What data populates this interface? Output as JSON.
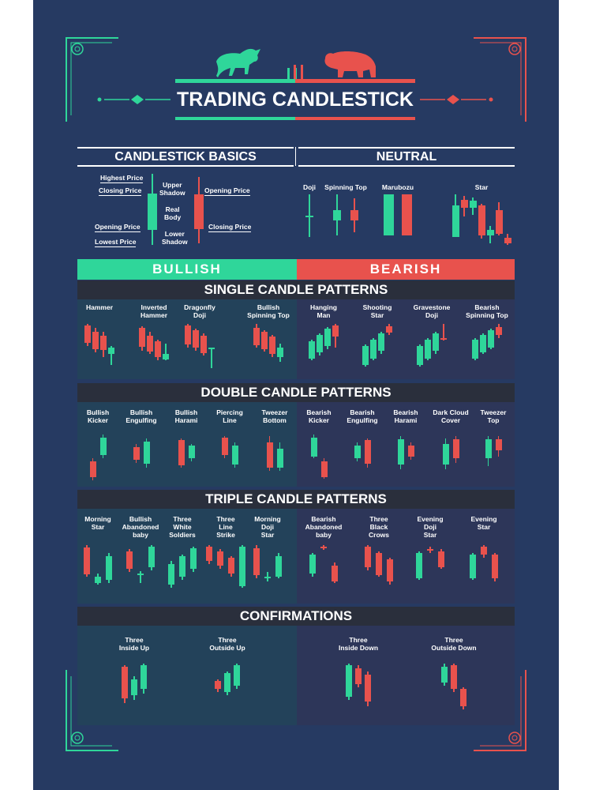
{
  "title": "TRADING CANDLESTICK",
  "colors": {
    "background": "#263a62",
    "bullish": "#2fd69a",
    "bearish": "#e8524d",
    "section_bar": "#2a2f3c",
    "panel_bull": "#23425a",
    "panel_bear": "#2d3659"
  },
  "basics": {
    "title": "CANDLESTICK BASICS",
    "labels": {
      "highest_price": "Highest Price",
      "closing_price_left": "Closing Price",
      "opening_price_left": "Opening Price",
      "lowest_price": "Lowest Price",
      "upper_shadow": "Upper\nShadow",
      "real_body": "Real\nBody",
      "lower_shadow": "Lower\nShadow",
      "opening_price_right": "Opening Price",
      "closing_price_right": "Closing Price"
    }
  },
  "neutral": {
    "title": "NEUTRAL",
    "patterns": [
      {
        "name": "Doji",
        "candles": [
          {
            "c": "bull",
            "wt": 0,
            "bt": 27,
            "bh": 2,
            "wb": 54
          }
        ]
      },
      {
        "name": "Spinning Top",
        "candles": [
          {
            "c": "bull",
            "wt": 0,
            "bt": 20,
            "bh": 13,
            "wb": 52
          },
          {
            "c": "bear",
            "wt": 5,
            "bt": 20,
            "bh": 13,
            "wb": 48
          }
        ]
      },
      {
        "name": "Marubozu",
        "candles": [
          {
            "c": "bull",
            "wt": 0,
            "bt": 0,
            "bh": 52,
            "wb": 52
          },
          {
            "c": "bear",
            "wt": 0,
            "bt": 0,
            "bh": 52,
            "wb": 52
          }
        ]
      },
      {
        "name": "Star",
        "candles": [
          {
            "c": "bull",
            "wt": 0,
            "bt": 14,
            "bh": 40,
            "wb": 54
          },
          {
            "c": "bear",
            "wt": 2,
            "bt": 7,
            "bh": 10,
            "wb": 28
          },
          {
            "c": "bull",
            "wt": 4,
            "bt": 8,
            "bh": 9,
            "wb": 26
          },
          {
            "c": "bear",
            "wt": 12,
            "bt": 14,
            "bh": 38,
            "wb": 56
          },
          {
            "c": "bull",
            "wt": 40,
            "bt": 45,
            "bh": 7,
            "wb": 62
          },
          {
            "c": "bear",
            "wt": 10,
            "bt": 20,
            "bh": 30,
            "wb": 52
          },
          {
            "c": "bear",
            "wt": 50,
            "bt": 55,
            "bh": 7,
            "wb": 64
          }
        ]
      }
    ]
  },
  "bullish_label": "BULLISH",
  "bearish_label": "BEARISH",
  "single": {
    "title": "SINGLE CANDLE PATTERNS",
    "bullish": [
      {
        "name": "Hammer",
        "candles": [
          {
            "c": "bear",
            "wt": 0,
            "bt": 2,
            "bh": 22,
            "wb": 28
          },
          {
            "c": "bear",
            "wt": 5,
            "bt": 10,
            "bh": 22,
            "wb": 36
          },
          {
            "c": "bear",
            "wt": 10,
            "bt": 15,
            "bh": 18,
            "wb": 42
          },
          {
            "c": "bull",
            "wt": 28,
            "bt": 30,
            "bh": 8,
            "wb": 52
          }
        ]
      },
      {
        "name": "Inverted\nHammer",
        "candles": [
          {
            "c": "bear",
            "wt": 3,
            "bt": 5,
            "bh": 24,
            "wb": 34
          },
          {
            "c": "bear",
            "wt": 10,
            "bt": 15,
            "bh": 20,
            "wb": 38
          },
          {
            "c": "bear",
            "wt": 20,
            "bt": 22,
            "bh": 20,
            "wb": 46
          },
          {
            "c": "bull",
            "wt": 25,
            "bt": 38,
            "bh": 7,
            "wb": 46
          }
        ]
      },
      {
        "name": "Dragonfly\nDoji",
        "candles": [
          {
            "c": "bear",
            "wt": 0,
            "bt": 2,
            "bh": 24,
            "wb": 30
          },
          {
            "c": "bear",
            "wt": 6,
            "bt": 8,
            "bh": 22,
            "wb": 34
          },
          {
            "c": "bear",
            "wt": 12,
            "bt": 15,
            "bh": 22,
            "wb": 40
          },
          {
            "c": "bull",
            "wt": 30,
            "bt": 30,
            "bh": 2,
            "wb": 56
          }
        ]
      },
      {
        "name": "Bullish\nSpinning Top",
        "candles": [
          {
            "c": "bear",
            "wt": 0,
            "bt": 5,
            "bh": 22,
            "wb": 30
          },
          {
            "c": "bear",
            "wt": 8,
            "bt": 10,
            "bh": 22,
            "wb": 35
          },
          {
            "c": "bear",
            "wt": 14,
            "bt": 16,
            "bh": 22,
            "wb": 42
          },
          {
            "c": "bull",
            "wt": 25,
            "bt": 30,
            "bh": 12,
            "wb": 48
          }
        ]
      }
    ],
    "bearish": [
      {
        "name": "Hanging\nMan",
        "candles": [
          {
            "c": "bull",
            "wt": 20,
            "bt": 22,
            "bh": 22,
            "wb": 46
          },
          {
            "c": "bull",
            "wt": 12,
            "bt": 14,
            "bh": 22,
            "wb": 40
          },
          {
            "c": "bull",
            "wt": 4,
            "bt": 6,
            "bh": 22,
            "wb": 32
          },
          {
            "c": "bear",
            "wt": 0,
            "bt": 2,
            "bh": 14,
            "wb": 30
          }
        ]
      },
      {
        "name": "Shooting\nStar",
        "candles": [
          {
            "c": "bull",
            "wt": 26,
            "bt": 28,
            "bh": 24,
            "wb": 54
          },
          {
            "c": "bull",
            "wt": 18,
            "bt": 20,
            "bh": 24,
            "wb": 46
          },
          {
            "c": "bull",
            "wt": 10,
            "bt": 12,
            "bh": 22,
            "wb": 38
          },
          {
            "c": "bear",
            "wt": 0,
            "bt": 3,
            "bh": 8,
            "wb": 14
          }
        ]
      },
      {
        "name": "Gravestone\nDoji",
        "candles": [
          {
            "c": "bull",
            "wt": 26,
            "bt": 28,
            "bh": 24,
            "wb": 54
          },
          {
            "c": "bull",
            "wt": 18,
            "bt": 20,
            "bh": 24,
            "wb": 46
          },
          {
            "c": "bull",
            "wt": 10,
            "bt": 12,
            "bh": 22,
            "wb": 38
          },
          {
            "c": "bear",
            "wt": 0,
            "bt": 18,
            "bh": 2,
            "wb": 21
          }
        ]
      },
      {
        "name": "Bearish\nSpinning Top",
        "candles": [
          {
            "c": "bull",
            "wt": 18,
            "bt": 20,
            "bh": 24,
            "wb": 46
          },
          {
            "c": "bull",
            "wt": 12,
            "bt": 14,
            "bh": 22,
            "wb": 38
          },
          {
            "c": "bull",
            "wt": 6,
            "bt": 8,
            "bh": 22,
            "wb": 32
          },
          {
            "c": "bear",
            "wt": 0,
            "bt": 4,
            "bh": 10,
            "wb": 18
          }
        ]
      }
    ]
  },
  "double": {
    "title": "DOUBLE CANDLE PATTERNS",
    "bullish": [
      {
        "name": "Bullish\nKicker",
        "candles": [
          {
            "c": "bear",
            "wt": 30,
            "bt": 34,
            "bh": 20,
            "wb": 58
          },
          {
            "c": "bull",
            "wt": 0,
            "bt": 4,
            "bh": 22,
            "wb": 30
          }
        ]
      },
      {
        "name": "Bullish\nEngulfing",
        "candles": [
          {
            "c": "bear",
            "wt": 12,
            "bt": 16,
            "bh": 16,
            "wb": 36
          },
          {
            "c": "bull",
            "wt": 5,
            "bt": 9,
            "bh": 28,
            "wb": 42
          }
        ]
      },
      {
        "name": "Bullish\nHarami",
        "candles": [
          {
            "c": "bear",
            "wt": 5,
            "bt": 7,
            "bh": 32,
            "wb": 42
          },
          {
            "c": "bull",
            "wt": 12,
            "bt": 14,
            "bh": 16,
            "wb": 34
          }
        ]
      },
      {
        "name": "Piercing\nLine",
        "candles": [
          {
            "c": "bear",
            "wt": 2,
            "bt": 4,
            "bh": 22,
            "wb": 30
          },
          {
            "c": "bull",
            "wt": 10,
            "bt": 14,
            "bh": 24,
            "wb": 42
          }
        ]
      },
      {
        "name": "Tweezer\nBottom",
        "candles": [
          {
            "c": "bear",
            "wt": 2,
            "bt": 10,
            "bh": 32,
            "wb": 46
          },
          {
            "c": "bull",
            "wt": 10,
            "bt": 18,
            "bh": 24,
            "wb": 46
          }
        ]
      }
    ],
    "bearish": [
      {
        "name": "Bearish\nKicker",
        "candles": [
          {
            "c": "bull",
            "wt": 0,
            "bt": 4,
            "bh": 24,
            "wb": 30
          },
          {
            "c": "bear",
            "wt": 30,
            "bt": 34,
            "bh": 20,
            "wb": 56
          }
        ]
      },
      {
        "name": "Bearish\nEngulfing",
        "candles": [
          {
            "c": "bull",
            "wt": 10,
            "bt": 14,
            "bh": 16,
            "wb": 34
          },
          {
            "c": "bear",
            "wt": 5,
            "bt": 7,
            "bh": 30,
            "wb": 42
          }
        ]
      },
      {
        "name": "Bearish\nHarami",
        "candles": [
          {
            "c": "bull",
            "wt": 2,
            "bt": 6,
            "bh": 32,
            "wb": 44
          },
          {
            "c": "bear",
            "wt": 10,
            "bt": 14,
            "bh": 14,
            "wb": 32
          }
        ]
      },
      {
        "name": "Dark Cloud\nCover",
        "candles": [
          {
            "c": "bull",
            "wt": 5,
            "bt": 12,
            "bh": 26,
            "wb": 44
          },
          {
            "c": "bear",
            "wt": 2,
            "bt": 6,
            "bh": 24,
            "wb": 36
          }
        ]
      },
      {
        "name": "Tweezer\nTop",
        "candles": [
          {
            "c": "bull",
            "wt": 2,
            "bt": 6,
            "bh": 24,
            "wb": 40
          },
          {
            "c": "bear",
            "wt": 2,
            "bt": 6,
            "bh": 14,
            "wb": 28
          }
        ]
      }
    ]
  },
  "triple": {
    "title": "TRIPLE CANDLE PATTERNS",
    "bullish": [
      {
        "name": "Morning\nStar",
        "candles": [
          {
            "c": "bear",
            "wt": 0,
            "bt": 3,
            "bh": 34,
            "wb": 40
          },
          {
            "c": "bull",
            "wt": 36,
            "bt": 40,
            "bh": 8,
            "wb": 50
          },
          {
            "c": "bull",
            "wt": 10,
            "bt": 14,
            "bh": 30,
            "wb": 48
          }
        ]
      },
      {
        "name": "Bullish\nAbandoned\nbaby",
        "candles": [
          {
            "c": "bear",
            "wt": 5,
            "bt": 8,
            "bh": 22,
            "wb": 34
          },
          {
            "c": "bull",
            "wt": 33,
            "bt": 36,
            "bh": 2,
            "wb": 48
          },
          {
            "c": "bull",
            "wt": 0,
            "bt": 2,
            "bh": 26,
            "wb": 32
          }
        ]
      },
      {
        "name": "Three\nWhite\nSoldiers",
        "candles": [
          {
            "c": "bull",
            "wt": 20,
            "bt": 24,
            "bh": 26,
            "wb": 54
          },
          {
            "c": "bull",
            "wt": 12,
            "bt": 14,
            "bh": 26,
            "wb": 44
          },
          {
            "c": "bull",
            "wt": 2,
            "bt": 4,
            "bh": 26,
            "wb": 34
          }
        ]
      },
      {
        "name": "Three\nLine\nStrike",
        "candles": [
          {
            "c": "bear",
            "wt": 0,
            "bt": 2,
            "bh": 18,
            "wb": 24
          },
          {
            "c": "bear",
            "wt": 5,
            "bt": 8,
            "bh": 18,
            "wb": 30
          },
          {
            "c": "bear",
            "wt": 14,
            "bt": 16,
            "bh": 20,
            "wb": 40
          },
          {
            "c": "bull",
            "wt": 0,
            "bt": 2,
            "bh": 50,
            "wb": 54
          }
        ]
      },
      {
        "name": "Morning\nDoji\nStar",
        "candles": [
          {
            "c": "bear",
            "wt": 0,
            "bt": 4,
            "bh": 34,
            "wb": 42
          },
          {
            "c": "bull",
            "wt": 34,
            "bt": 40,
            "bh": 2,
            "wb": 46
          },
          {
            "c": "bull",
            "wt": 10,
            "bt": 14,
            "bh": 26,
            "wb": 42
          }
        ]
      }
    ],
    "bearish": [
      {
        "name": "Bearish\nAbandoned\nbaby",
        "candles": [
          {
            "c": "bull",
            "wt": 10,
            "bt": 12,
            "bh": 24,
            "wb": 40
          },
          {
            "c": "bear",
            "wt": 0,
            "bt": 2,
            "bh": 2,
            "wb": 6
          },
          {
            "c": "bear",
            "wt": 22,
            "bt": 26,
            "bh": 20,
            "wb": 48
          }
        ]
      },
      {
        "name": "Three\nBlack\nCrows",
        "candles": [
          {
            "c": "bear",
            "wt": 0,
            "bt": 2,
            "bh": 26,
            "wb": 32
          },
          {
            "c": "bear",
            "wt": 8,
            "bt": 10,
            "bh": 28,
            "wb": 40
          },
          {
            "c": "bear",
            "wt": 16,
            "bt": 18,
            "bh": 28,
            "wb": 50
          }
        ]
      },
      {
        "name": "Evening\nDoji\nStar",
        "candles": [
          {
            "c": "bull",
            "wt": 8,
            "bt": 10,
            "bh": 32,
            "wb": 44
          },
          {
            "c": "bear",
            "wt": 2,
            "bt": 5,
            "bh": 2,
            "wb": 10
          },
          {
            "c": "bear",
            "wt": 5,
            "bt": 8,
            "bh": 20,
            "wb": 30
          }
        ]
      },
      {
        "name": "Evening\nStar",
        "candles": [
          {
            "c": "bull",
            "wt": 10,
            "bt": 12,
            "bh": 30,
            "wb": 44
          },
          {
            "c": "bear",
            "wt": 0,
            "bt": 2,
            "bh": 10,
            "wb": 16
          },
          {
            "c": "bear",
            "wt": 10,
            "bt": 12,
            "bh": 30,
            "wb": 46
          }
        ]
      }
    ]
  },
  "confirmations": {
    "title": "CONFIRMATIONS",
    "bullish": [
      {
        "name": "Three\nInside Up",
        "candles": [
          {
            "c": "bear",
            "wt": 2,
            "bt": 4,
            "bh": 40,
            "wb": 50
          },
          {
            "c": "bull",
            "wt": 16,
            "bt": 20,
            "bh": 20,
            "wb": 46
          },
          {
            "c": "bull",
            "wt": 0,
            "bt": 2,
            "bh": 30,
            "wb": 38
          }
        ]
      },
      {
        "name": "Three\nOutside Up",
        "candles": [
          {
            "c": "bear",
            "wt": 20,
            "bt": 22,
            "bh": 10,
            "wb": 36
          },
          {
            "c": "bull",
            "wt": 10,
            "bt": 12,
            "bh": 24,
            "wb": 40
          },
          {
            "c": "bull",
            "wt": 0,
            "bt": 2,
            "bh": 26,
            "wb": 32
          }
        ]
      }
    ],
    "bearish": [
      {
        "name": "Three\nInside Down",
        "candles": [
          {
            "c": "bull",
            "wt": 0,
            "bt": 2,
            "bh": 40,
            "wb": 46
          },
          {
            "c": "bear",
            "wt": 2,
            "bt": 6,
            "bh": 20,
            "wb": 30
          },
          {
            "c": "bear",
            "wt": 10,
            "bt": 14,
            "bh": 34,
            "wb": 54
          }
        ]
      },
      {
        "name": "Three\nOutside Down",
        "candles": [
          {
            "c": "bull",
            "wt": 0,
            "bt": 4,
            "bh": 20,
            "wb": 28
          },
          {
            "c": "bear",
            "wt": 0,
            "bt": 2,
            "bh": 30,
            "wb": 36
          },
          {
            "c": "bear",
            "wt": 30,
            "bt": 32,
            "bh": 22,
            "wb": 58
          }
        ]
      }
    ]
  }
}
